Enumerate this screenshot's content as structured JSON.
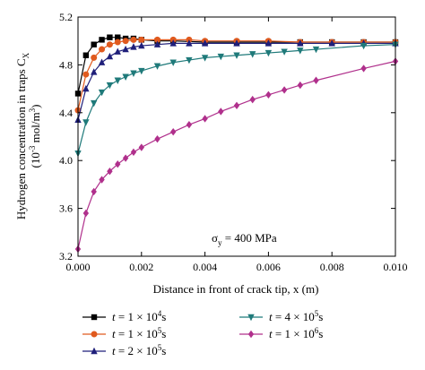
{
  "chart_data": {
    "type": "line",
    "xlabel": "Distance in front of crack tip, x (m)",
    "ylabel_line1": "Hydrogen concentration in traps C_X",
    "ylabel_line2": "(10^-3 mol/m^3)",
    "xlim": [
      0,
      0.01
    ],
    "ylim": [
      3.2,
      5.2
    ],
    "xticks": [
      "0.000",
      "0.002",
      "0.004",
      "0.006",
      "0.008",
      "0.010"
    ],
    "yticks": [
      "3.2",
      "3.6",
      "4.0",
      "4.4",
      "4.8",
      "5.2"
    ],
    "annotation": "σy = 400 MPa",
    "legend_placement": "bottom",
    "series": [
      {
        "name": "t = 1 × 10^4 s",
        "color": "#000000",
        "marker": "square",
        "x": [
          0.0,
          0.00025,
          0.0005,
          0.00075,
          0.001,
          0.00125,
          0.0015,
          0.00175,
          0.002,
          0.0025,
          0.003,
          0.004,
          0.005,
          0.006,
          0.007,
          0.008,
          0.009,
          0.01
        ],
        "values": [
          4.56,
          4.88,
          4.97,
          5.01,
          5.03,
          5.03,
          5.02,
          5.02,
          5.01,
          5.0,
          5.0,
          4.99,
          4.99,
          4.99,
          4.99,
          4.99,
          4.99,
          4.99
        ]
      },
      {
        "name": "t = 1 × 10^5 s",
        "color": "#e05a1e",
        "marker": "circle",
        "x": [
          0.0,
          0.00025,
          0.0005,
          0.00075,
          0.001,
          0.00125,
          0.0015,
          0.00175,
          0.002,
          0.0025,
          0.003,
          0.0035,
          0.004,
          0.005,
          0.006,
          0.007,
          0.008,
          0.009,
          0.01
        ],
        "values": [
          4.42,
          4.72,
          4.86,
          4.93,
          4.97,
          4.99,
          5.0,
          5.01,
          5.01,
          5.01,
          5.01,
          5.01,
          5.0,
          5.0,
          5.0,
          4.99,
          4.99,
          4.99,
          4.99
        ]
      },
      {
        "name": "t = 2 × 10^5 s",
        "color": "#1f1f7a",
        "marker": "triangle-up",
        "x": [
          0.0,
          0.00025,
          0.0005,
          0.00075,
          0.001,
          0.00125,
          0.0015,
          0.00175,
          0.002,
          0.0025,
          0.003,
          0.0035,
          0.004,
          0.005,
          0.006,
          0.007,
          0.008,
          0.009,
          0.01
        ],
        "values": [
          4.34,
          4.6,
          4.74,
          4.82,
          4.87,
          4.91,
          4.93,
          4.95,
          4.96,
          4.97,
          4.98,
          4.98,
          4.98,
          4.98,
          4.98,
          4.98,
          4.98,
          4.98,
          4.98
        ]
      },
      {
        "name": "t = 4 × 10^5 s",
        "color": "#1f7a7a",
        "marker": "triangle-down",
        "x": [
          0.0,
          0.00025,
          0.0005,
          0.00075,
          0.001,
          0.00125,
          0.0015,
          0.00175,
          0.002,
          0.0025,
          0.003,
          0.0035,
          0.004,
          0.0045,
          0.005,
          0.0055,
          0.006,
          0.0065,
          0.007,
          0.0075,
          0.009,
          0.01
        ],
        "values": [
          4.06,
          4.32,
          4.48,
          4.57,
          4.63,
          4.67,
          4.7,
          4.73,
          4.75,
          4.79,
          4.82,
          4.84,
          4.86,
          4.87,
          4.88,
          4.89,
          4.9,
          4.91,
          4.92,
          4.93,
          4.96,
          4.97
        ]
      },
      {
        "name": "t = 1 × 10^6 s",
        "color": "#b0308c",
        "marker": "diamond",
        "x": [
          0.0,
          0.00025,
          0.0005,
          0.00075,
          0.001,
          0.00125,
          0.0015,
          0.00175,
          0.002,
          0.0025,
          0.003,
          0.0035,
          0.004,
          0.0045,
          0.005,
          0.0055,
          0.006,
          0.0065,
          0.007,
          0.0075,
          0.009,
          0.01
        ],
        "values": [
          3.26,
          3.56,
          3.74,
          3.84,
          3.91,
          3.97,
          4.02,
          4.07,
          4.11,
          4.18,
          4.24,
          4.3,
          4.35,
          4.41,
          4.46,
          4.51,
          4.55,
          4.59,
          4.63,
          4.67,
          4.77,
          4.83
        ]
      }
    ]
  }
}
